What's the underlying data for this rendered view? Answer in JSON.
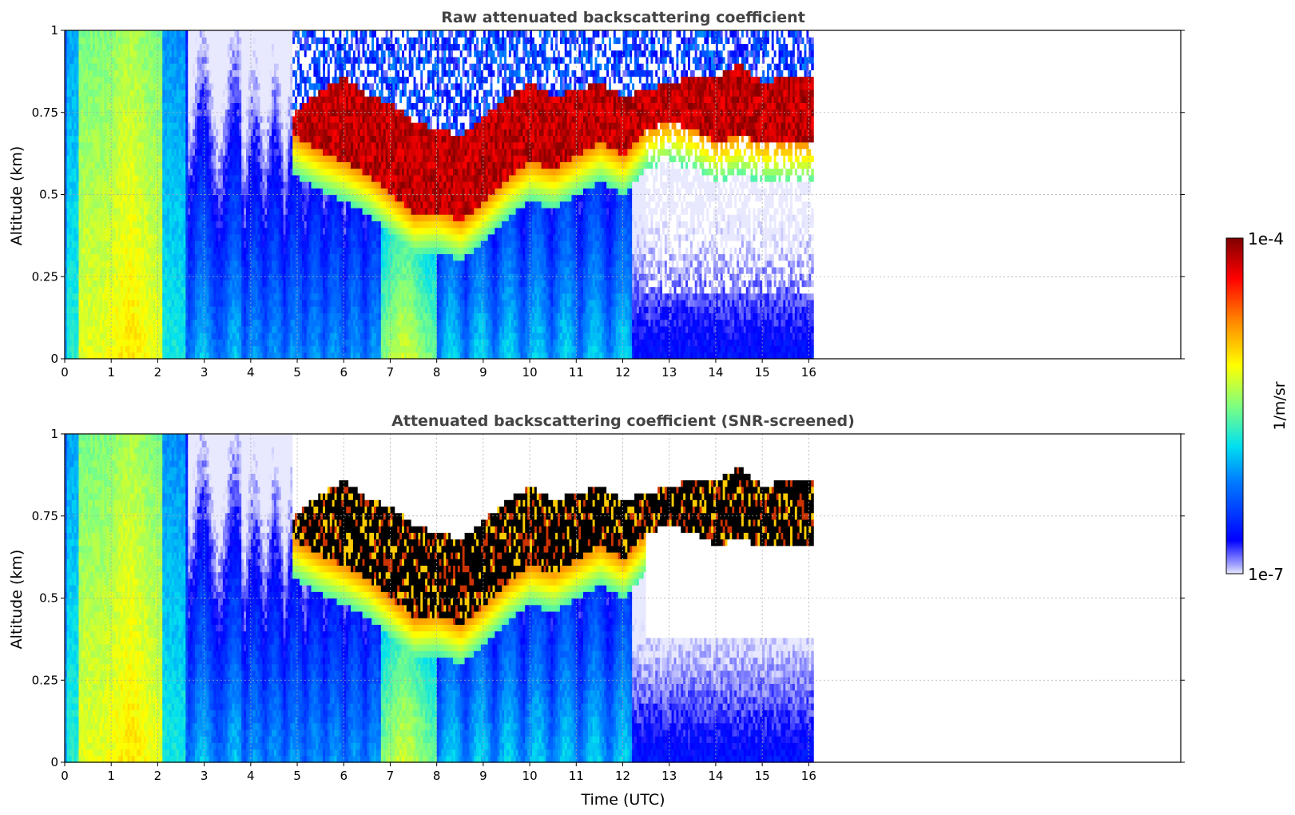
{
  "figure": {
    "xlabel": "Time (UTC)",
    "colorbar": {
      "label": "1/m/sr",
      "max_label": "1e-4",
      "min_label": "1e-7"
    }
  },
  "chart_data": [
    {
      "type": "heatmap",
      "title": "Raw attenuated backscattering coefficient",
      "xlabel": "",
      "ylabel": "Altitude (km)",
      "xlim": [
        0,
        24
      ],
      "ylim": [
        0,
        1
      ],
      "data_end_x": 16.1,
      "x_ticks": [
        0,
        1,
        2,
        3,
        4,
        5,
        6,
        7,
        8,
        9,
        10,
        11,
        12,
        13,
        14,
        15,
        16
      ],
      "y_ticks": [
        0,
        0.25,
        0.5,
        0.75,
        1
      ],
      "y_tick_labels": [
        "0",
        "0.25",
        "0.5",
        "0.75",
        "1"
      ],
      "grid": true,
      "colorscale": "jet",
      "cloud_base_km": [
        [
          4.9,
          0.68
        ],
        [
          5.5,
          0.63
        ],
        [
          6,
          0.6
        ],
        [
          6.5,
          0.56
        ],
        [
          7,
          0.5
        ],
        [
          7.5,
          0.44
        ],
        [
          8,
          0.45
        ],
        [
          8.5,
          0.42
        ],
        [
          9,
          0.48
        ],
        [
          9.5,
          0.55
        ],
        [
          10,
          0.6
        ],
        [
          10.5,
          0.58
        ],
        [
          11,
          0.62
        ],
        [
          11.5,
          0.66
        ],
        [
          12,
          0.62
        ],
        [
          12.5,
          0.7
        ],
        [
          13,
          0.72
        ],
        [
          13.5,
          0.7
        ],
        [
          14,
          0.66
        ],
        [
          14.5,
          0.68
        ],
        [
          15,
          0.66
        ],
        [
          15.5,
          0.66
        ],
        [
          16.1,
          0.66
        ]
      ],
      "cloud_top_km": [
        [
          4.9,
          0.75
        ],
        [
          5.5,
          0.82
        ],
        [
          6,
          0.86
        ],
        [
          6.5,
          0.8
        ],
        [
          7,
          0.78
        ],
        [
          7.5,
          0.72
        ],
        [
          8,
          0.7
        ],
        [
          8.5,
          0.68
        ],
        [
          9,
          0.74
        ],
        [
          9.5,
          0.8
        ],
        [
          10,
          0.84
        ],
        [
          10.5,
          0.8
        ],
        [
          11,
          0.82
        ],
        [
          11.5,
          0.84
        ],
        [
          12,
          0.8
        ],
        [
          12.5,
          0.82
        ],
        [
          13,
          0.84
        ],
        [
          13.5,
          0.86
        ],
        [
          14,
          0.86
        ],
        [
          14.5,
          0.9
        ],
        [
          15,
          0.84
        ],
        [
          15.5,
          0.86
        ],
        [
          16.1,
          0.86
        ]
      ],
      "screened": false
    },
    {
      "type": "heatmap",
      "title": "Attenuated backscattering coefficient (SNR-screened)",
      "xlabel": "Time (UTC)",
      "ylabel": "Altitude (km)",
      "xlim": [
        0,
        24
      ],
      "ylim": [
        0,
        1
      ],
      "data_end_x": 16.1,
      "x_ticks": [
        0,
        1,
        2,
        3,
        4,
        5,
        6,
        7,
        8,
        9,
        10,
        11,
        12,
        13,
        14,
        15,
        16
      ],
      "y_ticks": [
        0,
        0.25,
        0.5,
        0.75,
        1
      ],
      "y_tick_labels": [
        "0",
        "0.25",
        "0.5",
        "0.75",
        "1"
      ],
      "grid": true,
      "colorscale": "jet",
      "cloud_base_km": [
        [
          4.9,
          0.68
        ],
        [
          5.5,
          0.63
        ],
        [
          6,
          0.6
        ],
        [
          6.5,
          0.56
        ],
        [
          7,
          0.5
        ],
        [
          7.5,
          0.44
        ],
        [
          8,
          0.45
        ],
        [
          8.5,
          0.42
        ],
        [
          9,
          0.48
        ],
        [
          9.5,
          0.55
        ],
        [
          10,
          0.6
        ],
        [
          10.5,
          0.58
        ],
        [
          11,
          0.62
        ],
        [
          11.5,
          0.66
        ],
        [
          12,
          0.62
        ],
        [
          12.5,
          0.7
        ],
        [
          13,
          0.72
        ],
        [
          13.5,
          0.7
        ],
        [
          14,
          0.66
        ],
        [
          14.5,
          0.68
        ],
        [
          15,
          0.66
        ],
        [
          15.5,
          0.66
        ],
        [
          16.1,
          0.66
        ]
      ],
      "cloud_top_km": [
        [
          4.9,
          0.75
        ],
        [
          5.5,
          0.82
        ],
        [
          6,
          0.86
        ],
        [
          6.5,
          0.8
        ],
        [
          7,
          0.78
        ],
        [
          7.5,
          0.72
        ],
        [
          8,
          0.7
        ],
        [
          8.5,
          0.68
        ],
        [
          9,
          0.74
        ],
        [
          9.5,
          0.8
        ],
        [
          10,
          0.84
        ],
        [
          10.5,
          0.8
        ],
        [
          11,
          0.82
        ],
        [
          11.5,
          0.84
        ],
        [
          12,
          0.8
        ],
        [
          12.5,
          0.82
        ],
        [
          13,
          0.84
        ],
        [
          13.5,
          0.86
        ],
        [
          14,
          0.86
        ],
        [
          14.5,
          0.9
        ],
        [
          15,
          0.84
        ],
        [
          15.5,
          0.86
        ],
        [
          16.1,
          0.86
        ]
      ],
      "screened": true
    }
  ]
}
